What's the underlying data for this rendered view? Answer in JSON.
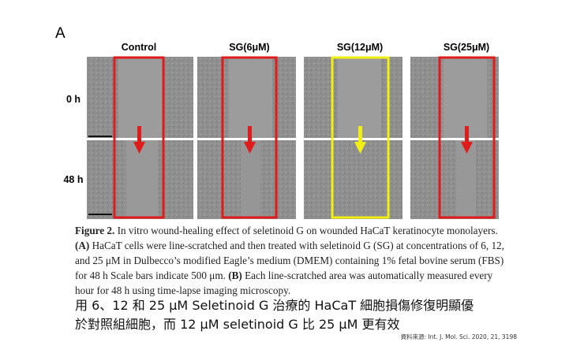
{
  "figure": {
    "panel_label": "A",
    "columns": [
      "Control",
      "SG(6μM)",
      "SG(12μM)",
      "SG(25μM)"
    ],
    "rows": [
      "0 h",
      "48 h"
    ]
  },
  "caption": {
    "lines": [
      [
        "Figure 2.",
        " In vitro wound-healing effect of seletinoid G on wounded HaCaT keratinocyte monolayers."
      ],
      [
        "(A)",
        " HaCaT cells were line-scratched and then treated with seletinoid G (SG) at concentrations of 6, 12,"
      ],
      [
        "and 25 μM in Dulbecco’s modified Eagle’s medium (DMEM) containing 1% fetal bovine serum (FBS)"
      ],
      [
        "for 48 h Scale bars indicate 500 μm. ",
        "(B)",
        " Each line-scratched area was automatically measured every"
      ],
      [
        "hour for 48 h using time-lapse imaging microscopy."
      ]
    ]
  },
  "summary": [
    "用 6、12 和 25 μM Seletinoid G 治療的 HaCaT 細胞損傷修復明顯優",
    "於對照組細胞，而 12 μM seletinoid G 比 25 μM 更有效"
  ],
  "source": "資料來源: Int. J. Mol. Sci. 2020, 21, 3198"
}
